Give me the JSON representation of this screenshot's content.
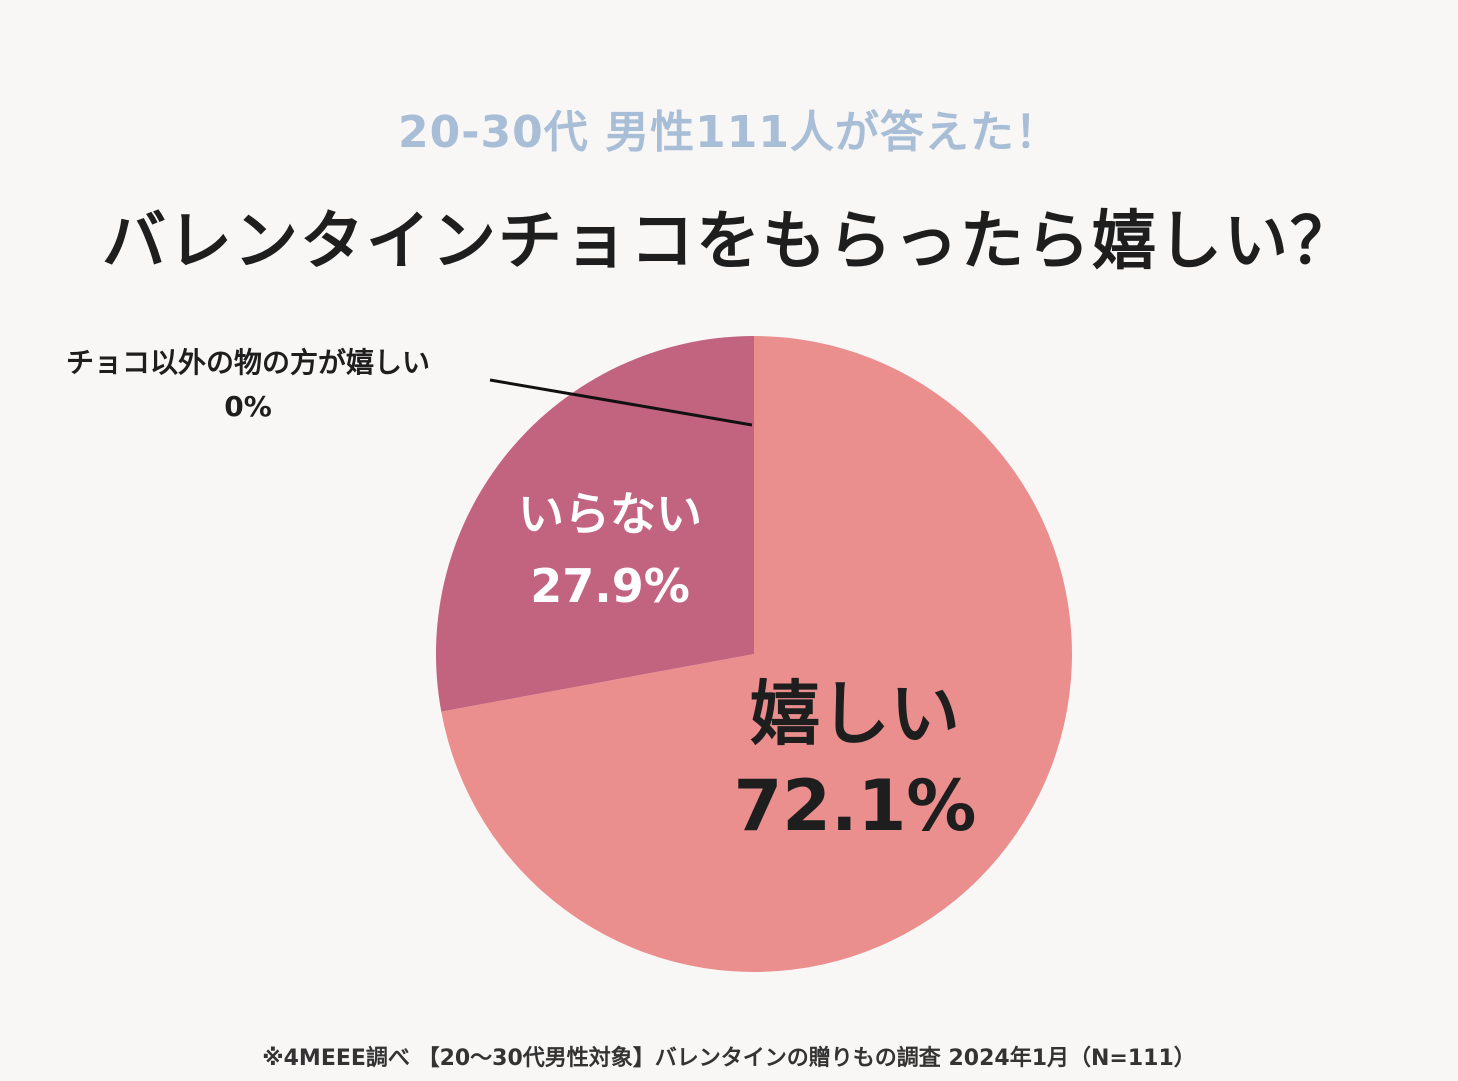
{
  "header": {
    "subtitle": "20-30代 男性111人が答えた！",
    "title": "バレンタインチョコをもらったら嬉しい？"
  },
  "chart_data": {
    "type": "pie",
    "title": "バレンタインチョコをもらったら嬉しい？",
    "subtitle": "20-30代 男性111人が答えた！",
    "slices": [
      {
        "label": "嬉しい",
        "value": 72.1,
        "value_label": "72.1%",
        "color": "#eb8e8e",
        "text_color": "#1e1e1e"
      },
      {
        "label": "いらない",
        "value": 27.9,
        "value_label": "27.9%",
        "color": "#c2637f",
        "text_color": "#ffffff"
      },
      {
        "label": "チョコ以外の物の方が嬉しい",
        "value": 0,
        "value_label": "0%",
        "color": "#7a3b55",
        "text_color": "#1e1e1e"
      }
    ],
    "start_angle": "12 o'clock",
    "direction": "clockwise"
  },
  "footnote": "※4MEEE調べ 【20〜30代男性対象】バレンタインの贈りもの調査 2024年1月（N=111）"
}
